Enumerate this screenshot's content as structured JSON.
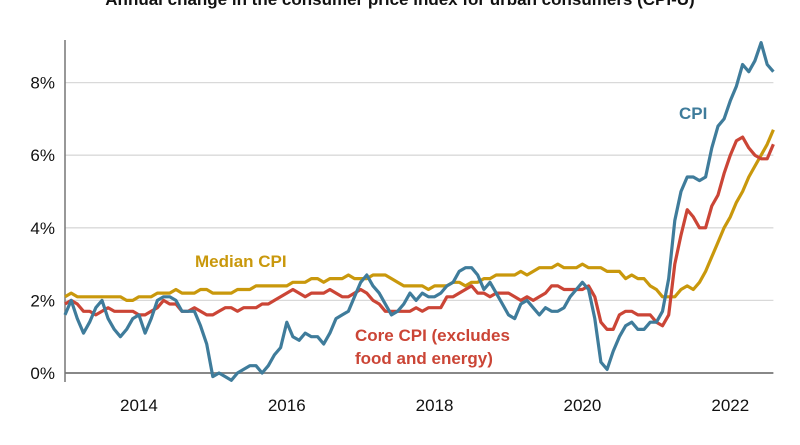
{
  "chart_data": {
    "type": "line",
    "title": "Annual change in the consumer price index for urban consumers (CPI-U)",
    "xlabel": "",
    "ylabel": "",
    "x_range": [
      "2013-01",
      "2022-08"
    ],
    "frequency": "monthly",
    "x_ticks": [
      {
        "label": "2014",
        "date": "2014-01"
      },
      {
        "label": "2016",
        "date": "2016-01"
      },
      {
        "label": "2018",
        "date": "2018-01"
      },
      {
        "label": "2020",
        "date": "2020-01"
      },
      {
        "label": "2022",
        "date": "2022-01"
      }
    ],
    "ylim": [
      -0.5,
      9.2
    ],
    "y_ticks": [
      {
        "label": "0%",
        "value": 0
      },
      {
        "label": "2%",
        "value": 2
      },
      {
        "label": "4%",
        "value": 4
      },
      {
        "label": "6%",
        "value": 6
      },
      {
        "label": "8%",
        "value": 8
      }
    ],
    "grid": "horizontal",
    "legend": "inline labels",
    "series": [
      {
        "name": "Median CPI",
        "label_lines": [
          "Median CPI"
        ],
        "color": "#c9980c",
        "values": [
          2.1,
          2.2,
          2.1,
          2.1,
          2.1,
          2.1,
          2.1,
          2.1,
          2.1,
          2.1,
          2.0,
          2.0,
          2.1,
          2.1,
          2.1,
          2.2,
          2.2,
          2.2,
          2.3,
          2.2,
          2.2,
          2.2,
          2.3,
          2.3,
          2.2,
          2.2,
          2.2,
          2.2,
          2.3,
          2.3,
          2.3,
          2.4,
          2.4,
          2.4,
          2.4,
          2.4,
          2.4,
          2.5,
          2.5,
          2.5,
          2.6,
          2.6,
          2.5,
          2.6,
          2.6,
          2.6,
          2.7,
          2.6,
          2.6,
          2.6,
          2.7,
          2.7,
          2.7,
          2.6,
          2.5,
          2.4,
          2.4,
          2.4,
          2.4,
          2.3,
          2.4,
          2.4,
          2.4,
          2.5,
          2.5,
          2.4,
          2.5,
          2.5,
          2.6,
          2.6,
          2.7,
          2.7,
          2.7,
          2.7,
          2.8,
          2.7,
          2.8,
          2.9,
          2.9,
          2.9,
          3.0,
          2.9,
          2.9,
          2.9,
          3.0,
          2.9,
          2.9,
          2.9,
          2.8,
          2.8,
          2.8,
          2.6,
          2.7,
          2.6,
          2.6,
          2.4,
          2.3,
          2.1,
          2.1,
          2.1,
          2.3,
          2.4,
          2.3,
          2.5,
          2.8,
          3.2,
          3.6,
          4.0,
          4.3,
          4.7,
          5.0,
          5.4,
          5.7,
          6.0,
          6.3,
          6.7
        ]
      },
      {
        "name": "Core CPI (excludes food and energy)",
        "label_lines": [
          "Core CPI (excludes",
          "food and energy)"
        ],
        "color": "#cb4536",
        "values": [
          1.9,
          2.0,
          1.9,
          1.7,
          1.7,
          1.6,
          1.7,
          1.8,
          1.7,
          1.7,
          1.7,
          1.7,
          1.6,
          1.6,
          1.7,
          1.8,
          2.0,
          1.9,
          1.9,
          1.7,
          1.7,
          1.8,
          1.7,
          1.6,
          1.6,
          1.7,
          1.8,
          1.8,
          1.7,
          1.8,
          1.8,
          1.8,
          1.9,
          1.9,
          2.0,
          2.1,
          2.2,
          2.3,
          2.2,
          2.1,
          2.2,
          2.2,
          2.2,
          2.3,
          2.2,
          2.1,
          2.1,
          2.2,
          2.3,
          2.2,
          2.0,
          1.9,
          1.7,
          1.7,
          1.7,
          1.7,
          1.7,
          1.8,
          1.7,
          1.8,
          1.8,
          1.8,
          2.1,
          2.1,
          2.2,
          2.3,
          2.4,
          2.2,
          2.2,
          2.1,
          2.2,
          2.2,
          2.2,
          2.1,
          2.0,
          2.1,
          2.0,
          2.1,
          2.2,
          2.4,
          2.4,
          2.3,
          2.3,
          2.3,
          2.3,
          2.4,
          2.1,
          1.4,
          1.2,
          1.2,
          1.6,
          1.7,
          1.7,
          1.6,
          1.6,
          1.6,
          1.4,
          1.3,
          1.6,
          3.0,
          3.8,
          4.5,
          4.3,
          4.0,
          4.0,
          4.6,
          4.9,
          5.5,
          6.0,
          6.4,
          6.5,
          6.2,
          6.0,
          5.9,
          5.9,
          6.3
        ]
      },
      {
        "name": "CPI",
        "label_lines": [
          "CPI"
        ],
        "color": "#3f7c9b",
        "values": [
          1.6,
          2.0,
          1.5,
          1.1,
          1.4,
          1.8,
          2.0,
          1.5,
          1.2,
          1.0,
          1.2,
          1.5,
          1.6,
          1.1,
          1.5,
          2.0,
          2.1,
          2.1,
          2.0,
          1.7,
          1.7,
          1.7,
          1.3,
          0.8,
          -0.1,
          0.0,
          -0.1,
          -0.2,
          0.0,
          0.1,
          0.2,
          0.2,
          0.0,
          0.2,
          0.5,
          0.7,
          1.4,
          1.0,
          0.9,
          1.1,
          1.0,
          1.0,
          0.8,
          1.1,
          1.5,
          1.6,
          1.7,
          2.1,
          2.5,
          2.7,
          2.4,
          2.2,
          1.9,
          1.6,
          1.7,
          1.9,
          2.2,
          2.0,
          2.2,
          2.1,
          2.1,
          2.2,
          2.4,
          2.5,
          2.8,
          2.9,
          2.9,
          2.7,
          2.3,
          2.5,
          2.2,
          1.9,
          1.6,
          1.5,
          1.9,
          2.0,
          1.8,
          1.6,
          1.8,
          1.7,
          1.7,
          1.8,
          2.1,
          2.3,
          2.5,
          2.3,
          1.5,
          0.3,
          0.1,
          0.6,
          1.0,
          1.3,
          1.4,
          1.2,
          1.2,
          1.4,
          1.4,
          1.7,
          2.6,
          4.2,
          5.0,
          5.4,
          5.4,
          5.3,
          5.4,
          6.2,
          6.8,
          7.0,
          7.5,
          7.9,
          8.5,
          8.3,
          8.6,
          9.1,
          8.5,
          8.3
        ]
      }
    ]
  }
}
